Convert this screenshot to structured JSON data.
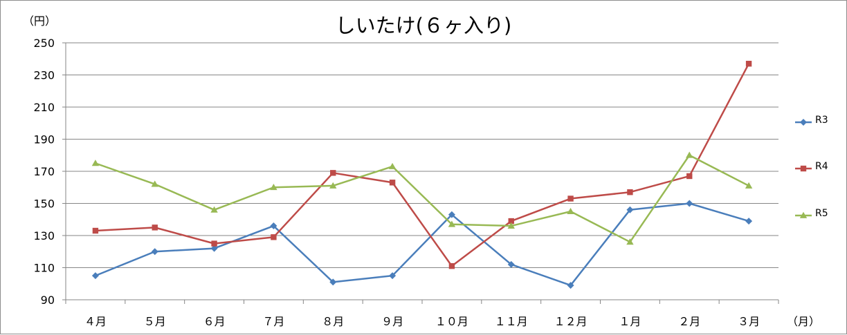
{
  "chart_data": {
    "type": "line",
    "title": "しいたけ(６ヶ入り)",
    "ylabel": "（円）",
    "xlabel": "（月）",
    "ylim": [
      90,
      250
    ],
    "yticks": [
      90,
      110,
      130,
      150,
      170,
      190,
      210,
      230,
      250
    ],
    "grid": true,
    "legend_position": "right",
    "categories": [
      "４月",
      "５月",
      "６月",
      "７月",
      "８月",
      "９月",
      "１０月",
      "１１月",
      "１２月",
      "１月",
      "２月",
      "３月"
    ],
    "series": [
      {
        "name": "R3",
        "color": "#4a7ebb",
        "marker": "diamond",
        "values": [
          105,
          120,
          122,
          136,
          101,
          105,
          143,
          112,
          99,
          146,
          150,
          139
        ]
      },
      {
        "name": "R4",
        "color": "#be4b48",
        "marker": "square",
        "values": [
          133,
          135,
          125,
          129,
          169,
          163,
          111,
          139,
          153,
          157,
          167,
          237
        ]
      },
      {
        "name": "R5",
        "color": "#98b954",
        "marker": "triangle",
        "values": [
          175,
          162,
          146,
          160,
          161,
          173,
          137,
          136,
          145,
          126,
          180,
          161
        ]
      }
    ]
  }
}
